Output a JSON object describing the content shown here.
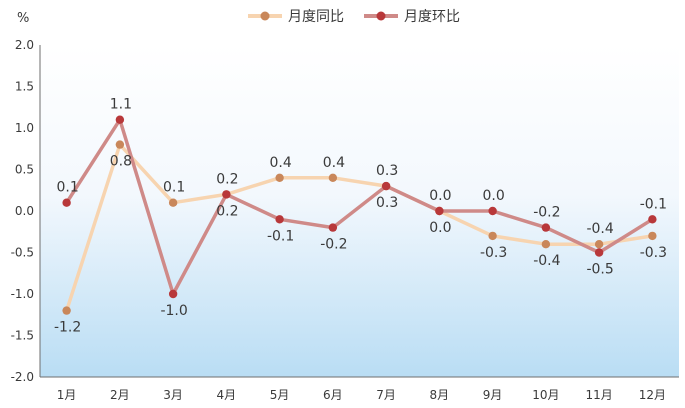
{
  "chart_data": {
    "type": "line",
    "unit_label": "%",
    "categories": [
      "1月",
      "2月",
      "3月",
      "4月",
      "5月",
      "6月",
      "7月",
      "8月",
      "9月",
      "10月",
      "11月",
      "12月"
    ],
    "y_ticks": [
      "2.0",
      "1.5",
      "1.0",
      "0.5",
      "0.0",
      "-0.5",
      "-1.0",
      "-1.5",
      "-2.0"
    ],
    "ylim": [
      -2.0,
      2.0
    ],
    "grid": false,
    "legend_position": "top",
    "series": [
      {
        "name": "月度同比",
        "color": "#f7d4b0",
        "marker_color": "#c9875a",
        "values": [
          -1.2,
          0.8,
          0.1,
          0.2,
          0.4,
          0.4,
          0.3,
          0.0,
          -0.3,
          -0.4,
          -0.4,
          -0.3
        ],
        "labels": [
          "-1.2",
          "0.8",
          "0.1",
          "0.2",
          "0.4",
          "0.4",
          "0.3",
          "0.0",
          "-0.3",
          "-0.4",
          "-0.4",
          "-0.3"
        ]
      },
      {
        "name": "月度环比",
        "color": "#cf8a88",
        "marker_color": "#b8383a",
        "values": [
          0.1,
          1.1,
          -1.0,
          0.2,
          -0.1,
          -0.2,
          0.3,
          0.0,
          0.0,
          -0.2,
          -0.5,
          -0.1
        ],
        "labels": [
          "0.1",
          "1.1",
          "-1.0",
          "0.2",
          "-0.1",
          "-0.2",
          "0.3",
          "0.0",
          "0.0",
          "-0.2",
          "-0.5",
          "-0.1"
        ]
      }
    ]
  }
}
